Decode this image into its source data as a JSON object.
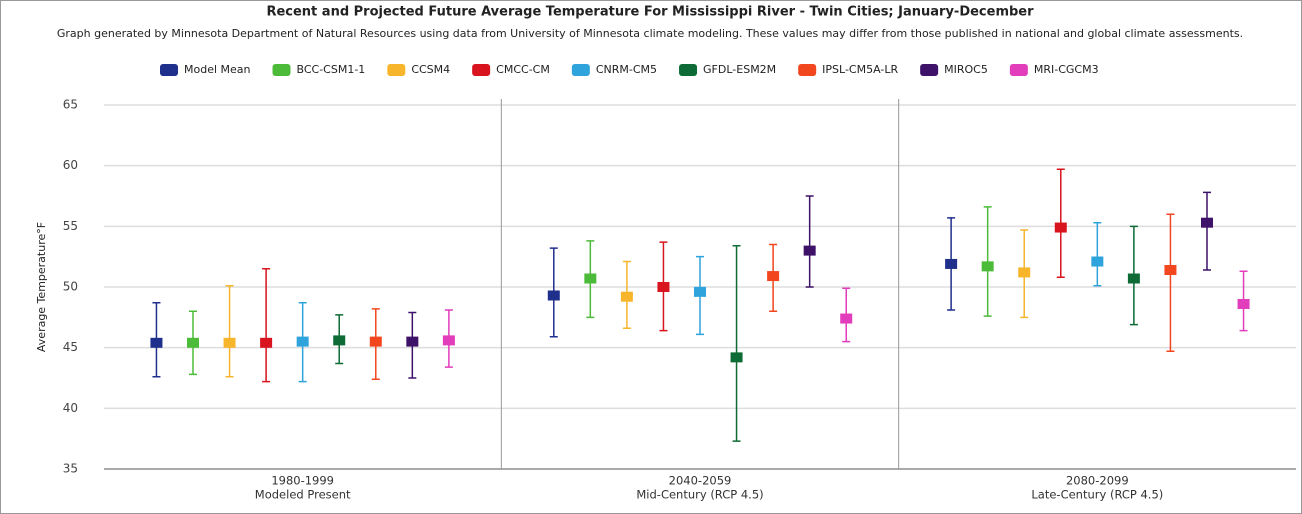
{
  "chart_data": {
    "type": "error_bar",
    "title": "Recent and Projected Future Average Temperature For Mississippi River - Twin Cities; January-December",
    "subtitle": "Graph generated by Minnesota Department of Natural Resources using data from University of Minnesota climate modeling. These values may differ from those published in national and global climate assessments.",
    "y_label": "Average Temperature°F",
    "categories": [
      "1980-1999",
      "2040-2059",
      "2080-2099"
    ],
    "category_subtitles": [
      "Modeled Present",
      "Mid-Century (RCP 4.5)",
      "Late-Century (RCP 4.5)"
    ],
    "ylim": [
      35,
      65
    ],
    "yticks": [
      35,
      40,
      45,
      50,
      55,
      60,
      65
    ],
    "grid": true,
    "legend": "top",
    "series": [
      {
        "name": "Model Mean",
        "color": "#1f2f8c",
        "values": [
          45.4,
          49.3,
          51.9
        ],
        "lows": [
          42.6,
          45.9,
          48.1
        ],
        "highs": [
          48.7,
          53.2,
          55.7
        ]
      },
      {
        "name": "BCC-CSM1-1",
        "color": "#4cbb3a",
        "values": [
          45.4,
          50.7,
          51.7
        ],
        "lows": [
          42.8,
          47.5,
          47.6
        ],
        "highs": [
          48.0,
          53.8,
          56.6
        ]
      },
      {
        "name": "CCSM4",
        "color": "#f7b52c",
        "values": [
          45.4,
          49.2,
          51.2
        ],
        "lows": [
          42.6,
          46.6,
          47.5
        ],
        "highs": [
          50.1,
          52.1,
          54.7
        ]
      },
      {
        "name": "CMCC-CM",
        "color": "#d8141e",
        "values": [
          45.4,
          50.0,
          54.9
        ],
        "lows": [
          42.2,
          46.4,
          50.8
        ],
        "highs": [
          51.5,
          53.7,
          59.7
        ]
      },
      {
        "name": "CNRM-CM5",
        "color": "#2ea3dc",
        "values": [
          45.5,
          49.6,
          52.1
        ],
        "lows": [
          42.2,
          46.1,
          50.1
        ],
        "highs": [
          48.7,
          52.5,
          55.3
        ]
      },
      {
        "name": "GFDL-ESM2M",
        "color": "#0e6b35",
        "values": [
          45.6,
          44.2,
          50.7
        ],
        "lows": [
          43.7,
          37.3,
          46.9
        ],
        "highs": [
          47.7,
          53.4,
          55.0
        ]
      },
      {
        "name": "IPSL-CM5A-LR",
        "color": "#f2461e",
        "values": [
          45.5,
          50.9,
          51.4
        ],
        "lows": [
          42.4,
          48.0,
          44.7
        ],
        "highs": [
          48.2,
          53.5,
          56.0
        ]
      },
      {
        "name": "MIROC5",
        "color": "#3e1268",
        "values": [
          45.5,
          53.0,
          55.3
        ],
        "lows": [
          42.5,
          50.0,
          51.4
        ],
        "highs": [
          47.9,
          57.5,
          57.8
        ]
      },
      {
        "name": "MRI-CGCM3",
        "color": "#e23dbb",
        "values": [
          45.6,
          47.4,
          48.6
        ],
        "lows": [
          43.4,
          45.5,
          46.4
        ],
        "highs": [
          48.1,
          49.9,
          51.3
        ]
      }
    ]
  }
}
